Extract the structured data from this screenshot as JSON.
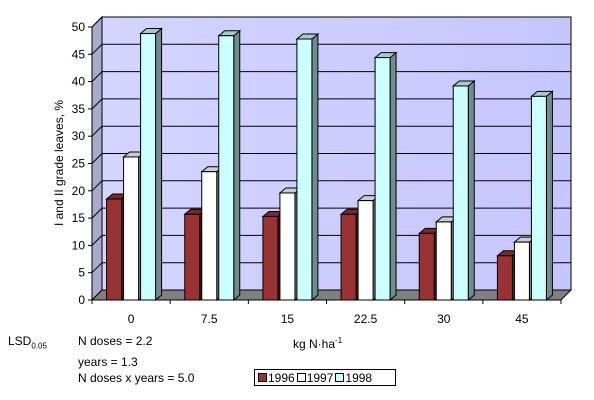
{
  "chart_data": {
    "type": "bar",
    "title": "",
    "xlabel": "kg N·ha",
    "xlabel_sup": "-1",
    "ylabel": "I and II grade leaves, %",
    "ylim": [
      0,
      50
    ],
    "yticks": [
      "0",
      "5",
      "10",
      "15",
      "20",
      "25",
      "30",
      "35",
      "40",
      "45",
      "50"
    ],
    "categories": [
      "0",
      "7.5",
      "15",
      "22.5",
      "30",
      "45"
    ],
    "series": [
      {
        "name": "1996",
        "color": "#993333",
        "values": [
          18.5,
          15.7,
          15.3,
          15.7,
          12.2,
          8.1
        ]
      },
      {
        "name": "1997",
        "color": "#ffffff",
        "values": [
          26.2,
          23.5,
          19.6,
          18.2,
          14.3,
          10.6
        ]
      },
      {
        "name": "1998",
        "color": "#ccffff",
        "values": [
          48.8,
          48.4,
          47.8,
          44.4,
          39.2,
          37.3
        ]
      }
    ],
    "grid": true,
    "plot_background": "#ccccff",
    "floor_color": "#808080",
    "legend_position": "bottom"
  },
  "lsd": {
    "label_main": "LSD",
    "label_sub": "0.05",
    "rows": [
      "N doses = 2.2",
      "years = 1.3",
      "N doses x years = 5.0"
    ]
  }
}
